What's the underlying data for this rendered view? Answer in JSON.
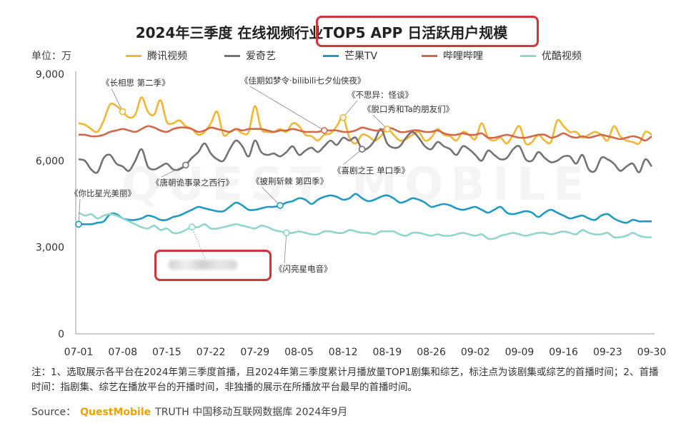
{
  "title": "2024年三季度 在线视频行业TOP5 APP 日活跃用户规模",
  "unit_label": "单位：万",
  "watermark": "QUEST MOBILE",
  "note": "注：1、选取展示各平台在2024年第三季度首播，且2024年第三季度累计月播放量TOP1剧集和综艺，标注点为该剧集或综艺的首播时间；2、首播时间：指剧集、综艺在播放平台的开播时间，非独播的展示在所播放平台最早的首播时间。",
  "source": {
    "prefix": "Source：",
    "brand": "QuestMobile",
    "rest": "TRUTH 中国移动互联网数据库 2024年9月"
  },
  "chart_data": {
    "type": "line",
    "title": "2024年三季度 在线视频行业TOP5 APP 日活跃用户规模",
    "ylabel": "单位：万",
    "ylim": [
      0,
      9000
    ],
    "y_ticks": [
      0,
      3000,
      6000,
      9000
    ],
    "y_tick_labels": [
      "0",
      "3,000",
      "6,000",
      "9,000"
    ],
    "x_tick_labels": [
      "07-01",
      "07-08",
      "07-15",
      "07-22",
      "07-29",
      "08-05",
      "08-12",
      "08-19",
      "08-26",
      "09-02",
      "09-09",
      "09-16",
      "09-23",
      "09-30"
    ],
    "x_tick_days": [
      0,
      7,
      14,
      21,
      28,
      35,
      42,
      49,
      56,
      63,
      70,
      77,
      84,
      91
    ],
    "legend_position": "top",
    "series": [
      {
        "name": "腾讯视频",
        "color": "#f2b632",
        "values": [
          7300,
          7250,
          7100,
          7000,
          7400,
          7950,
          7900,
          7700,
          7500,
          7600,
          8200,
          7700,
          7600,
          8100,
          7350,
          7300,
          7400,
          7200,
          7100,
          6900,
          7000,
          7300,
          7700,
          6900,
          7000,
          7100,
          6950,
          7000,
          7900,
          7100,
          7000,
          7000,
          7100,
          7000,
          7300,
          7200,
          6900,
          6850,
          6700,
          6900,
          6950,
          7200,
          7500,
          6800,
          6600,
          6900,
          6850,
          6700,
          6850,
          7100,
          6900,
          6700,
          6750,
          6900,
          7000,
          6700,
          6800,
          7100,
          6900,
          6850,
          6700,
          7000,
          6900,
          6750,
          7300,
          6800,
          6700,
          6800,
          6600,
          6900,
          7200,
          6600,
          6650,
          6900,
          6700,
          6650,
          7400,
          7200,
          7000,
          7000,
          6800,
          6900,
          7000,
          6900,
          6700,
          7200,
          6850,
          6700,
          6650,
          6600,
          7000,
          6900
        ]
      },
      {
        "name": "爱奇艺",
        "color": "#737373",
        "values": [
          6050,
          6000,
          5700,
          5600,
          6100,
          6200,
          5900,
          5800,
          5650,
          6000,
          6400,
          5800,
          5700,
          5800,
          5900,
          5700,
          5700,
          5850,
          6100,
          6300,
          6600,
          6250,
          6050,
          6000,
          6400,
          6700,
          6500,
          6150,
          6700,
          6300,
          6200,
          6250,
          6150,
          6300,
          6500,
          6200,
          6350,
          6450,
          6300,
          6500,
          6700,
          6550,
          6800,
          6700,
          6800,
          6400,
          6450,
          6700,
          7100,
          6600,
          6450,
          6500,
          6800,
          7000,
          6800,
          6500,
          6400,
          6650,
          6500,
          6400,
          6200,
          6500,
          6400,
          6200,
          6000,
          6350,
          6200,
          6050,
          6100,
          6400,
          6500,
          6050,
          6000,
          6300,
          6100,
          5950,
          6000,
          6150,
          6150,
          5900,
          6200,
          5700,
          5650,
          6100,
          6050,
          5900,
          5650,
          5800,
          5900,
          5600,
          6050,
          5800
        ]
      },
      {
        "name": "芒果TV",
        "color": "#1f9ac7",
        "values": [
          3800,
          3800,
          3800,
          3850,
          3900,
          4150,
          4150,
          4000,
          3950,
          3950,
          4000,
          4100,
          4050,
          3950,
          3950,
          4050,
          4100,
          4200,
          4300,
          4400,
          4350,
          4300,
          4250,
          4250,
          4400,
          4550,
          4450,
          4300,
          4300,
          4350,
          4400,
          4400,
          4450,
          4550,
          4600,
          4700,
          4650,
          4500,
          4650,
          4750,
          4800,
          4750,
          4650,
          4700,
          4850,
          4700,
          4600,
          4650,
          4750,
          4800,
          4700,
          4550,
          4600,
          4700,
          4650,
          4550,
          4400,
          4450,
          4500,
          4450,
          4350,
          4300,
          4350,
          4400,
          4300,
          4200,
          4300,
          4400,
          4200,
          4150,
          4200,
          4250,
          4200,
          4050,
          4200,
          4300,
          4200,
          4100,
          4000,
          4050,
          4100,
          4000,
          3950,
          4100,
          4150,
          4000,
          3900,
          3850,
          3950,
          3900,
          3900,
          3900
        ]
      },
      {
        "name": "哔哩哔哩",
        "color": "#d4674a",
        "values": [
          6900,
          6900,
          6850,
          6850,
          6900,
          7000,
          7050,
          7100,
          7050,
          7000,
          7100,
          7200,
          7150,
          7050,
          7000,
          7100,
          7150,
          7150,
          7100,
          7000,
          7050,
          7150,
          7100,
          7050,
          7000,
          7100,
          7050,
          7100,
          7100,
          7100,
          7050,
          7000,
          7050,
          7050,
          7100,
          7050,
          7000,
          7000,
          7000,
          7050,
          7050,
          7050,
          7000,
          7000,
          7050,
          7150,
          7100,
          7050,
          7050,
          7150,
          7100,
          7000,
          7000,
          7050,
          7050,
          7000,
          7000,
          7050,
          6950,
          6900,
          6900,
          6950,
          6900,
          6900,
          6950,
          6800,
          6800,
          6850,
          6900,
          6850,
          6800,
          6800,
          6850,
          6900,
          6900,
          6800,
          6850,
          6950,
          6850,
          6800,
          6850,
          6800,
          6850,
          6900,
          6850,
          6800,
          6750,
          6800,
          6850,
          6800,
          6700,
          6850
        ]
      },
      {
        "name": "优酷视频",
        "color": "#8fd6cc",
        "values": [
          4200,
          4100,
          4150,
          4000,
          4100,
          4150,
          4100,
          4000,
          3900,
          3800,
          3700,
          3650,
          3750,
          3600,
          3650,
          3500,
          3500,
          3600,
          3700,
          3700,
          3800,
          3650,
          3650,
          3700,
          3750,
          3800,
          3750,
          3700,
          3650,
          3750,
          3700,
          3600,
          3550,
          3500,
          3500,
          3550,
          3500,
          3450,
          3450,
          3550,
          3550,
          3500,
          3500,
          3600,
          3550,
          3500,
          3500,
          3450,
          3550,
          3550,
          3550,
          3450,
          3400,
          3500,
          3500,
          3450,
          3400,
          3450,
          3400,
          3400,
          3450,
          3500,
          3450,
          3400,
          3450,
          3300,
          3300,
          3400,
          3450,
          3500,
          3450,
          3400,
          3450,
          3500,
          3500,
          3450,
          3500,
          3550,
          3500,
          3450,
          3600,
          3500,
          3450,
          3450,
          3500,
          3350,
          3350,
          3400,
          3500,
          3400,
          3350,
          3350
        ]
      }
    ],
    "annotations": [
      {
        "text": "《长相思 第二季》",
        "series": "腾讯视频",
        "day": 7
      },
      {
        "text": "《唐朝诡事录之西行》",
        "series": "爱奇艺",
        "day": 17
      },
      {
        "text": "《你比星光美丽》",
        "series": "芒果TV",
        "day": 0
      },
      {
        "text": "《披荆斩棘 第四季》",
        "series": "芒果TV",
        "day": 32
      },
      {
        "text": "《闪亮星电音》",
        "series": "优酷视频",
        "day": 33
      },
      {
        "text": "《佳期如梦令·bilibili七夕仙侠夜》",
        "series": "哔哩哔哩",
        "day": 39
      },
      {
        "text": "《不思异：怪谈》",
        "series": "腾讯视频",
        "day": 42
      },
      {
        "text": "《脱口秀和Ta的朋友们》",
        "series": "腾讯视频",
        "day": 49
      },
      {
        "text": "《喜剧之王 单口季》",
        "series": "爱奇艺",
        "day": 45
      },
      {
        "text": "",
        "series": "优酷视频",
        "day": 18
      }
    ]
  }
}
